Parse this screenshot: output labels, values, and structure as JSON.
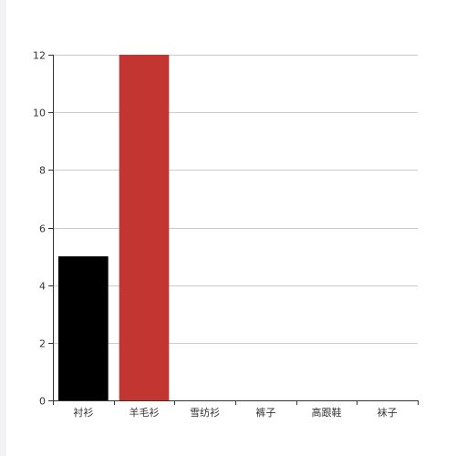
{
  "chart_data": {
    "type": "bar",
    "categories": [
      "衬衫",
      "羊毛衫",
      "雪纺衫",
      "裤子",
      "高跟鞋",
      "袜子"
    ],
    "values": [
      5,
      12,
      0,
      0,
      0,
      0
    ],
    "bar_colors": [
      "#000000",
      "#c23531",
      "#2f4554",
      "#61a0a8",
      "#d48265",
      "#91c7ae"
    ],
    "yticks": [
      0,
      2,
      4,
      6,
      8,
      10,
      12
    ],
    "ylim": [
      0,
      12
    ],
    "grid": true,
    "grid_color": "#cccccc",
    "axis_color": "#333333",
    "title": "",
    "xlabel": "",
    "ylabel": ""
  }
}
